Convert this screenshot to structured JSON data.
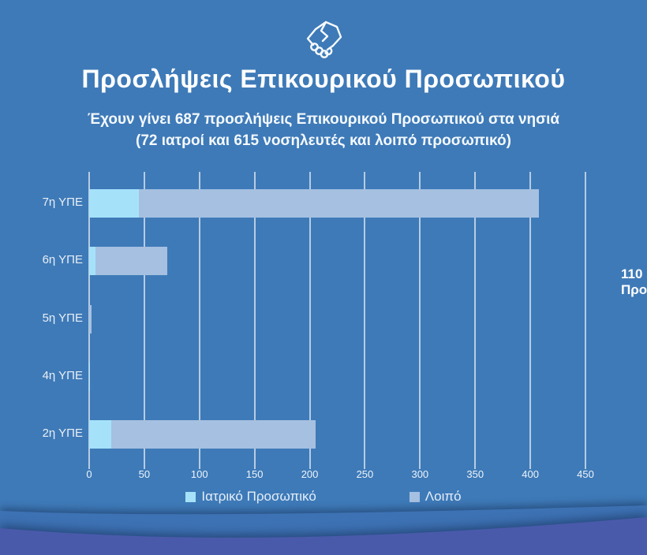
{
  "page": {
    "background_color": "#3e7ab8",
    "wave_colors": [
      "#3d72b4",
      "#4a5aab"
    ]
  },
  "header": {
    "icon": "handshake-icon",
    "title": "Προσλήψεις Επικουρικού Προσωπικού",
    "subtitle_line1": "Έχουν γίνει 687 προσλήψεις Επικουρικού Προσωπικού στα νησιά",
    "subtitle_line2": "(72 ιατροί και 615 νοσηλευτές και λοιπό προσωπικό)"
  },
  "side_note": {
    "line1": "110",
    "line2": "Προ"
  },
  "chart_data": {
    "type": "bar",
    "orientation": "horizontal",
    "stacked": true,
    "title": "Προσλήψεις Επικουρικού Προσωπικού",
    "categories": [
      "7η ΥΠΕ",
      "6η ΥΠΕ",
      "5η ΥΠΕ",
      "4η ΥΠΕ",
      "2η ΥΠΕ"
    ],
    "series": [
      {
        "name": "Ιατρικό Προσωπικό",
        "color": "#a5e2f9",
        "values": [
          45,
          6,
          0,
          1,
          20
        ]
      },
      {
        "name": "Λοιπό",
        "color": "#a6c0e1",
        "values": [
          363,
          65,
          2,
          0,
          185
        ]
      }
    ],
    "totals": [
      408,
      71,
      2,
      1,
      205
    ],
    "xlim": [
      0,
      450
    ],
    "xticks": [
      0,
      50,
      100,
      150,
      200,
      250,
      300,
      350,
      400,
      450
    ],
    "grid": true,
    "grid_color": "rgba(223,232,240,0.75)",
    "legend_position": "bottom"
  }
}
